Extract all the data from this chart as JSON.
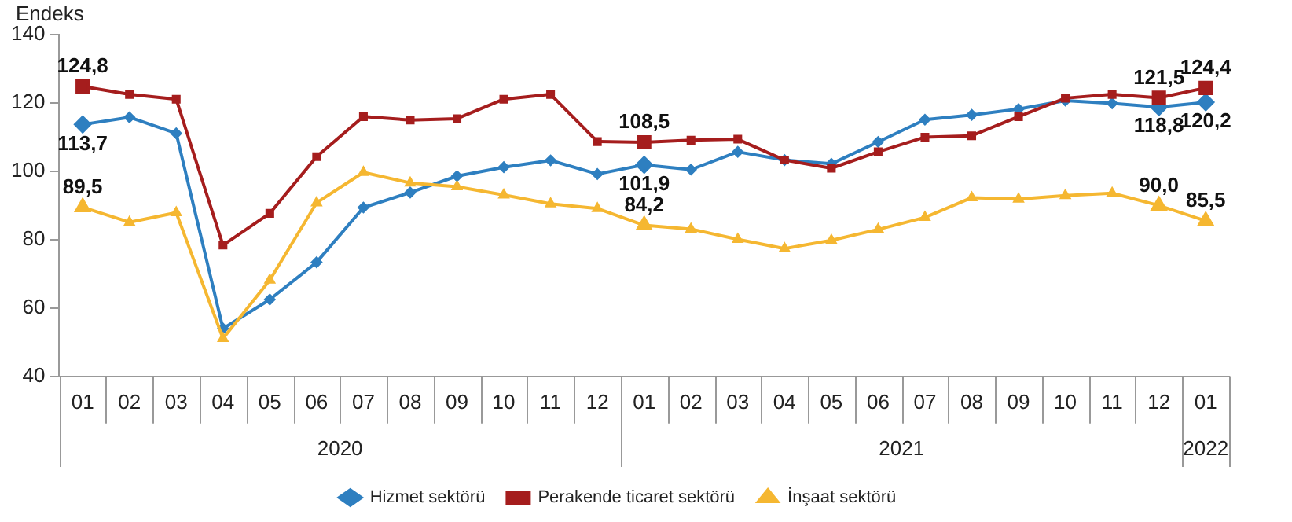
{
  "chart_data": {
    "type": "line",
    "ylabel": "Endeks",
    "categories": [
      "01",
      "02",
      "03",
      "04",
      "05",
      "06",
      "07",
      "08",
      "09",
      "10",
      "11",
      "12",
      "01",
      "02",
      "03",
      "04",
      "05",
      "06",
      "07",
      "08",
      "09",
      "10",
      "11",
      "12",
      "01"
    ],
    "annotations": [
      "2020",
      "2021",
      "2022"
    ],
    "ylim": [
      40,
      140
    ],
    "yticks": [
      40,
      60,
      80,
      100,
      120,
      140
    ],
    "grid": false,
    "legend": "bottom",
    "line_style": "solid",
    "series": [
      {
        "name": "Hizmet sektörü",
        "color": "#2e7fc0",
        "marker": "diamond",
        "values": [
          113.7,
          115.8,
          111.1,
          54,
          62.5,
          73.4,
          89.4,
          93.8,
          98.6,
          101.2,
          103.2,
          99.2,
          101.9,
          100.5,
          105.7,
          103.3,
          102.2,
          108.6,
          115.1,
          116.5,
          118.2,
          120.7,
          119.9,
          118.8,
          120.2
        ],
        "value_labels": [
          "113,7",
          null,
          null,
          null,
          null,
          null,
          null,
          null,
          null,
          null,
          null,
          null,
          "101,9",
          null,
          null,
          null,
          null,
          null,
          null,
          null,
          null,
          null,
          null,
          "118,8",
          "120,2"
        ]
      },
      {
        "name": "Perakende ticaret sektörü",
        "color": "#a51d1d",
        "marker": "square",
        "values": [
          124.8,
          122.5,
          121.1,
          78.4,
          87.7,
          104.3,
          116,
          115,
          115.4,
          121.1,
          122.5,
          108.7,
          108.5,
          109.1,
          109.4,
          103.3,
          100.9,
          105.7,
          110,
          110.4,
          116,
          121.4,
          122.5,
          121.5,
          124.4
        ],
        "value_labels": [
          "124,8",
          null,
          null,
          null,
          null,
          null,
          null,
          null,
          null,
          null,
          null,
          null,
          "108,5",
          null,
          null,
          null,
          null,
          null,
          null,
          null,
          null,
          null,
          null,
          "121,5",
          "124,4"
        ]
      },
      {
        "name": "İnşaat sektörü",
        "color": "#f5b731",
        "marker": "triangle",
        "values": [
          89.5,
          85.1,
          87.9,
          51.1,
          68.2,
          90.8,
          99.7,
          96.6,
          95.5,
          93.1,
          90.5,
          89.1,
          84.2,
          83.1,
          80.1,
          77.4,
          79.8,
          83,
          86.5,
          92.3,
          91.9,
          92.9,
          93.6,
          90.0,
          85.5
        ],
        "value_labels": [
          "89,5",
          null,
          null,
          null,
          null,
          null,
          null,
          null,
          null,
          null,
          null,
          null,
          "84,2",
          null,
          null,
          null,
          null,
          null,
          null,
          null,
          null,
          null,
          null,
          "90,0",
          "85,5"
        ]
      }
    ]
  }
}
